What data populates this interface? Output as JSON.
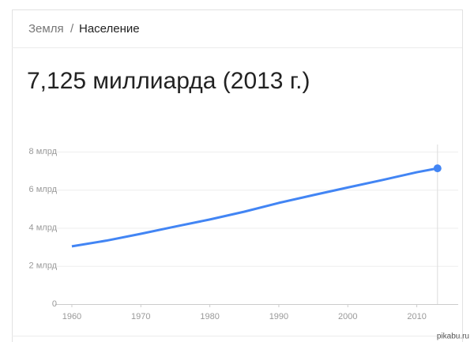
{
  "breadcrumb": {
    "parent": "Земля",
    "separator": "/",
    "current": "Население"
  },
  "chart_data": {
    "type": "line",
    "title": "7,125 миллиарда (2013 г.)",
    "x": [
      1960,
      1965,
      1970,
      1975,
      1980,
      1985,
      1990,
      1995,
      2000,
      2005,
      2010,
      2013
    ],
    "values": [
      3.03,
      3.33,
      3.69,
      4.07,
      4.44,
      4.85,
      5.31,
      5.72,
      6.12,
      6.51,
      6.92,
      7.125
    ],
    "color": "#4285f4",
    "xlim": [
      1957.6,
      2016
    ],
    "xticks": [
      1960,
      1970,
      1980,
      1990,
      2000,
      2010
    ],
    "ylim": [
      0,
      8
    ],
    "yticks": [
      0,
      {
        "value": 2,
        "label": "2 млрд"
      },
      {
        "value": 4,
        "label": "4 млрд"
      },
      {
        "value": 6,
        "label": "6 млрд"
      },
      {
        "value": 8,
        "label": "8 млрд"
      }
    ],
    "grid": true
  },
  "watermark": "pikabu.ru"
}
